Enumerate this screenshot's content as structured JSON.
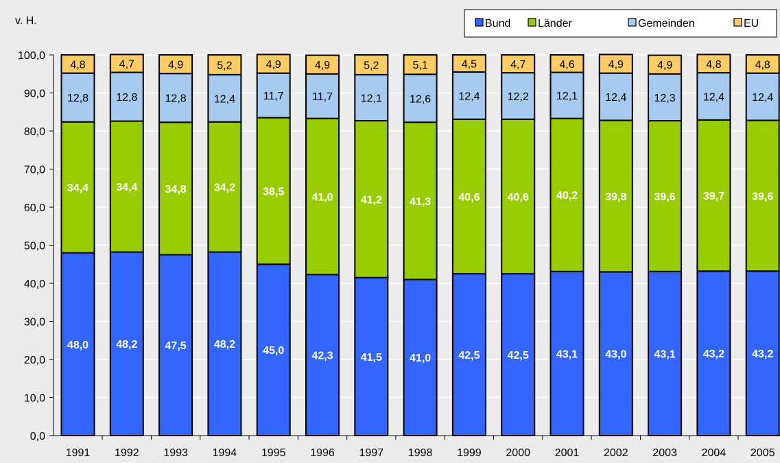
{
  "chart_data": {
    "type": "bar",
    "stacked": true,
    "ylabel": "v. H.",
    "ylim": [
      0,
      100
    ],
    "ytick_step": 10,
    "ytick_labels": [
      "0,0",
      "10,0",
      "20,0",
      "30,0",
      "40,0",
      "50,0",
      "60,0",
      "70,0",
      "80,0",
      "90,0",
      "100,0"
    ],
    "grid": true,
    "legend_position": "top-right",
    "categories": [
      "1991",
      "1992",
      "1993",
      "1994",
      "1995",
      "1996",
      "1997",
      "1998",
      "1999",
      "2000",
      "2001",
      "2002",
      "2003",
      "2004",
      "2005"
    ],
    "series": [
      {
        "name": "Bund",
        "color": "#3366ff",
        "label_color": "#ffffff",
        "label_bold": true,
        "values": [
          48.0,
          48.2,
          47.5,
          48.2,
          45.0,
          42.3,
          41.5,
          41.0,
          42.5,
          42.5,
          43.1,
          43.0,
          43.1,
          43.2,
          43.2
        ],
        "labels": [
          "48,0",
          "48,2",
          "47,5",
          "48,2",
          "45,0",
          "42,3",
          "41,5",
          "41,0",
          "42,5",
          "42,5",
          "43,1",
          "43,0",
          "43,1",
          "43,2",
          "43,2"
        ]
      },
      {
        "name": "Länder",
        "color": "#99cc00",
        "label_color": "#ffffff",
        "label_bold": true,
        "values": [
          34.4,
          34.4,
          34.8,
          34.2,
          38.5,
          41.0,
          41.2,
          41.3,
          40.6,
          40.6,
          40.2,
          39.8,
          39.6,
          39.7,
          39.6
        ],
        "labels": [
          "34,4",
          "34,4",
          "34,8",
          "34,2",
          "38,5",
          "41,0",
          "41,2",
          "41,3",
          "40,6",
          "40,6",
          "40,2",
          "39,8",
          "39,6",
          "39,7",
          "39,6"
        ]
      },
      {
        "name": "Gemeinden",
        "color": "#a6caf0",
        "label_color": "#000000",
        "label_bold": false,
        "values": [
          12.8,
          12.8,
          12.8,
          12.4,
          11.7,
          11.7,
          12.1,
          12.6,
          12.4,
          12.2,
          12.1,
          12.4,
          12.3,
          12.4,
          12.4
        ],
        "labels": [
          "12,8",
          "12,8",
          "12,8",
          "12,4",
          "11,7",
          "11,7",
          "12,1",
          "12,6",
          "12,4",
          "12,2",
          "12,1",
          "12,4",
          "12,3",
          "12,4",
          "12,4"
        ]
      },
      {
        "name": "EU",
        "color": "#ffcc66",
        "label_color": "#000000",
        "label_bold": false,
        "values": [
          4.8,
          4.7,
          4.9,
          5.2,
          4.9,
          4.9,
          5.2,
          5.1,
          4.5,
          4.7,
          4.6,
          4.9,
          4.9,
          4.8,
          4.8
        ],
        "labels": [
          "4,8",
          "4,7",
          "4,9",
          "5,2",
          "4,9",
          "4,9",
          "5,2",
          "5,1",
          "4,5",
          "4,7",
          "4,6",
          "4,9",
          "4,9",
          "4,8",
          "4,8"
        ]
      }
    ]
  }
}
